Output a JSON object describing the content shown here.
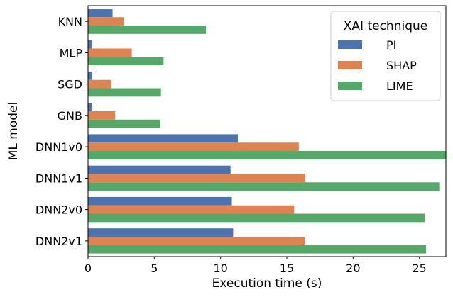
{
  "chart_data": {
    "type": "bar",
    "orientation": "horizontal",
    "categories": [
      "KNN",
      "MLP",
      "SGD",
      "GNB",
      "DNN1v0",
      "DNN1v1",
      "DNN2v0",
      "DNN2v1"
    ],
    "series": [
      {
        "name": "PI",
        "color": "#4c72b0",
        "values": [
          1.85,
          0.3,
          0.3,
          0.3,
          11.3,
          10.75,
          10.85,
          10.95
        ]
      },
      {
        "name": "SHAP",
        "color": "#dd8452",
        "values": [
          2.7,
          3.3,
          1.75,
          2.05,
          15.9,
          16.4,
          15.55,
          16.35
        ]
      },
      {
        "name": "LIME",
        "color": "#55a868",
        "values": [
          8.9,
          5.7,
          5.5,
          5.45,
          27.0,
          26.5,
          25.4,
          25.5
        ]
      }
    ],
    "xlabel": "Execution time (s)",
    "ylabel": "ML model",
    "xlim": [
      0,
      27
    ],
    "xticks": [
      0,
      5,
      10,
      15,
      20,
      25
    ],
    "grid": false,
    "legend": {
      "title": "XAI technique",
      "placement": "top-right"
    }
  }
}
